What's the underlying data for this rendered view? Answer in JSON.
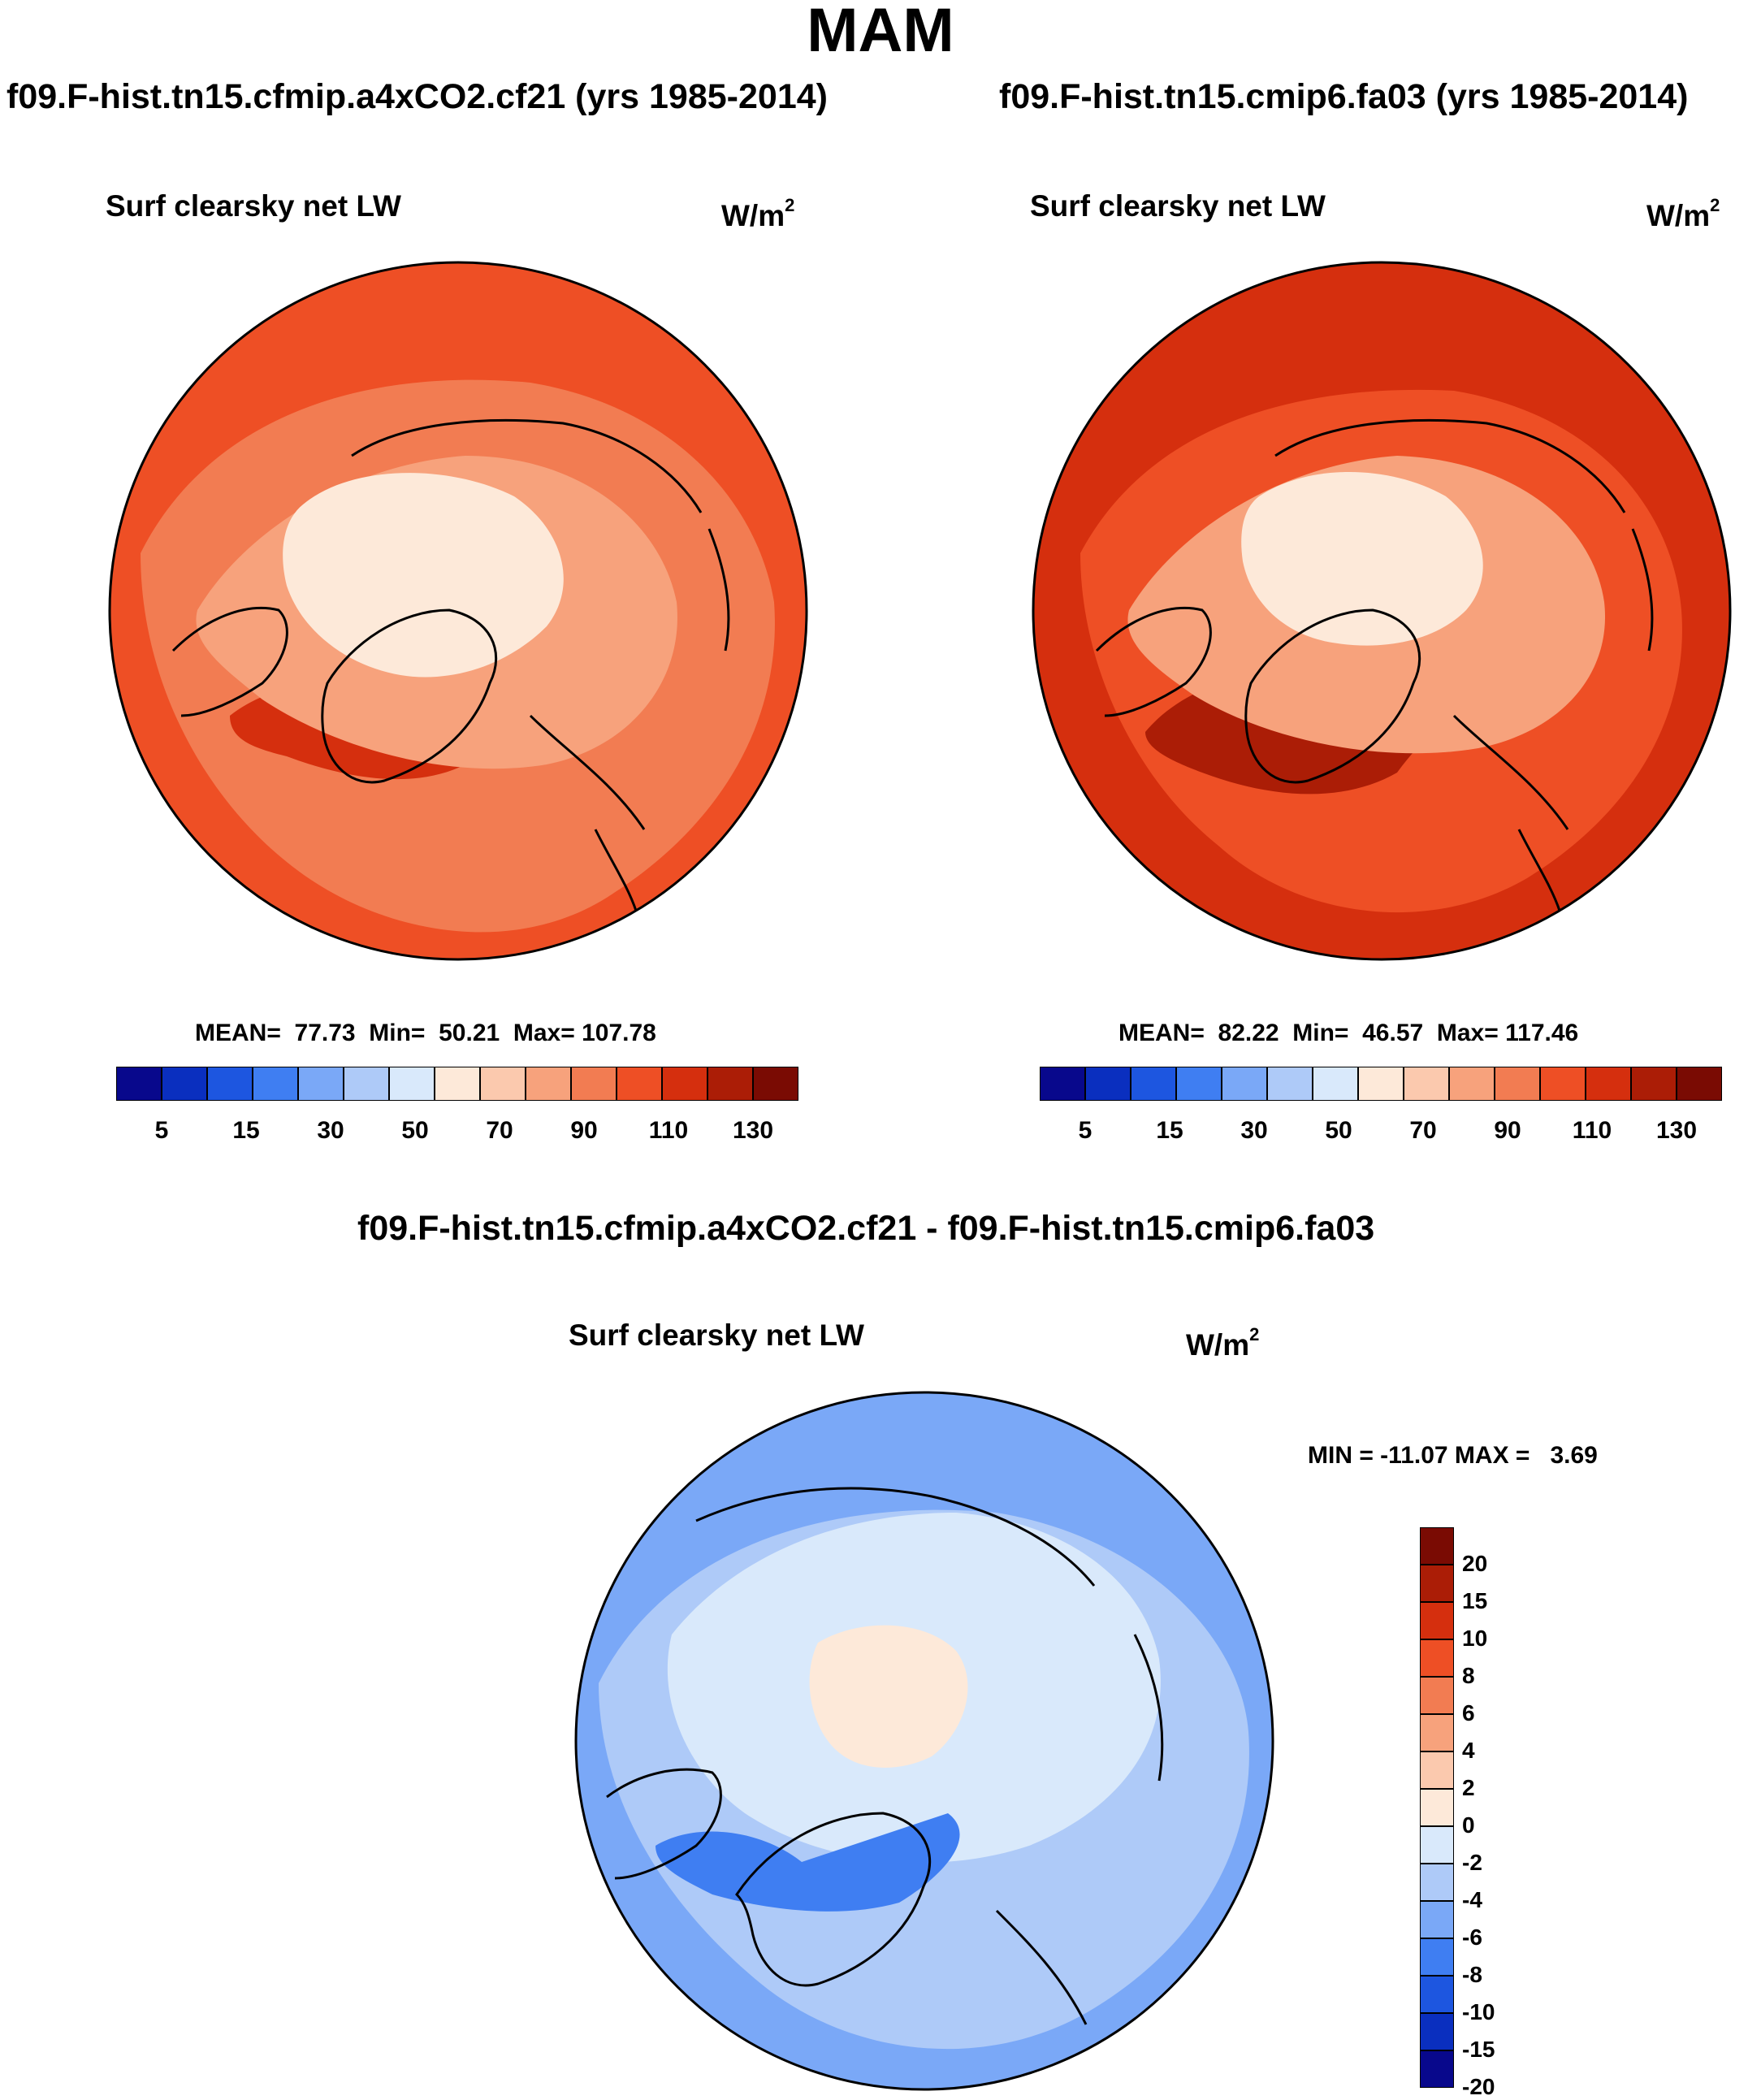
{
  "figure": {
    "season": "MAM"
  },
  "panels": [
    {
      "case_title": "f09.F-hist.tn15.cfmip.a4xCO2.cf21 (yrs 1985-2014)",
      "variable": "Surf clearsky net LW",
      "units_base": "W/m",
      "units_exp": "2",
      "stats": {
        "mean_label": "MEAN=",
        "mean": "77.73",
        "min_label": "Min=",
        "min": "50.21",
        "max_label": "Max=",
        "max": "107.78"
      },
      "map_levels": {
        "ocean_south": 90,
        "ocean_mid": 80,
        "greenland": 70,
        "arctic": 50,
        "atlantic_tongue": 100
      }
    },
    {
      "case_title": "f09.F-hist.tn15.cmip6.fa03 (yrs 1985-2014)",
      "variable": "Surf clearsky net LW",
      "units_base": "W/m",
      "units_exp": "2",
      "stats": {
        "mean_label": "MEAN=",
        "mean": "82.22",
        "min_label": "Min=",
        "min": "46.57",
        "max_label": "Max=",
        "max": "117.46"
      },
      "map_levels": {
        "ocean_south": 100,
        "ocean_mid": 90,
        "greenland": 70,
        "arctic": 50,
        "atlantic_tongue": 110
      }
    }
  ],
  "abs_colorbar": {
    "colors": [
      "#08088c",
      "#0a2fbf",
      "#1d56e0",
      "#3f7ef2",
      "#7aa8f7",
      "#aecaf8",
      "#d9e9fb",
      "#fde9d9",
      "#fbc9ae",
      "#f7a27c",
      "#f27c52",
      "#ee4f25",
      "#d52f0e",
      "#ab1d06",
      "#7a0b03"
    ],
    "tick_labels": [
      "5",
      "15",
      "30",
      "50",
      "70",
      "90",
      "110",
      "130"
    ]
  },
  "diff_panel": {
    "title": "f09.F-hist.tn15.cfmip.a4xCO2.cf21 - f09.F-hist.tn15.cmip6.fa03",
    "variable": "Surf clearsky net LW",
    "units_base": "W/m",
    "units_exp": "2",
    "minmax_text": "MIN = -11.07 MAX =   3.69",
    "map_levels": {
      "ocean_south": -8,
      "ocean_mid": -6,
      "greenland": -4,
      "arctic": -2,
      "atlantic_tongue": -10
    }
  },
  "diff_colorbar": {
    "colors_top_to_bottom": [
      "#7a0b03",
      "#ab1d06",
      "#d52f0e",
      "#ee4f25",
      "#f27c52",
      "#f7a27c",
      "#fbc9ae",
      "#fde9d9",
      "#d9e9fb",
      "#aecaf8",
      "#7aa8f7",
      "#3f7ef2",
      "#1d56e0",
      "#0a2fbf",
      "#08088c"
    ],
    "tick_labels_top_to_bottom": [
      "20",
      "15",
      "10",
      "8",
      "6",
      "4",
      "2",
      "0",
      "-2",
      "-4",
      "-6",
      "-8",
      "-10",
      "-15",
      "-20"
    ]
  }
}
